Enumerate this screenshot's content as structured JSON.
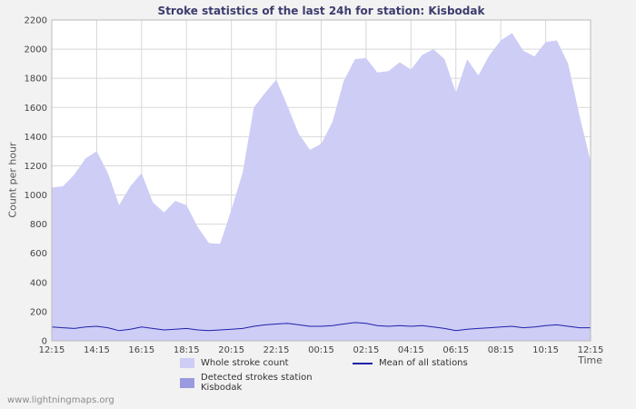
{
  "page": {
    "watermark": "www.lightningmaps.org"
  },
  "chart_data": {
    "type": "area",
    "title": "Stroke statistics of the last 24h for station: Kisbodak",
    "xlabel": "Time",
    "ylabel": "Count per hour",
    "ylim": [
      0,
      2200
    ],
    "y_ticks": [
      0,
      200,
      400,
      600,
      800,
      1000,
      1200,
      1400,
      1600,
      1800,
      2000,
      2200
    ],
    "x_ticks": [
      0,
      2,
      4,
      6,
      8,
      10,
      12,
      14,
      16,
      18,
      20,
      22,
      24
    ],
    "x_tick_labels": [
      "12:15",
      "14:15",
      "16:15",
      "18:15",
      "20:15",
      "22:15",
      "00:15",
      "02:15",
      "04:15",
      "06:15",
      "08:15",
      "10:15",
      "12:15"
    ],
    "x_hours": [
      0,
      0.5,
      1,
      1.5,
      2,
      2.5,
      3,
      3.5,
      4,
      4.5,
      5,
      5.5,
      6,
      6.5,
      7,
      7.5,
      8,
      8.5,
      9,
      9.5,
      10,
      10.5,
      11,
      11.5,
      12,
      12.5,
      13,
      13.5,
      14,
      14.5,
      15,
      15.5,
      16,
      16.5,
      17,
      17.5,
      18,
      18.5,
      19,
      19.5,
      20,
      20.5,
      21,
      21.5,
      22,
      22.5,
      23,
      23.5,
      24
    ],
    "grid": true,
    "legend_position": "bottom",
    "colors": {
      "plot_bg": "#ffffff",
      "grid": "#d8d8d8",
      "border": "#bbbbbb",
      "whole_area": "#cdcdf6",
      "detected_area": "#9a9ae0",
      "mean_line": "#2121aa"
    },
    "series": [
      {
        "id": "whole",
        "name": "Whole stroke count",
        "type": "area",
        "color": "#cdcdf6",
        "values": [
          1050,
          1060,
          1140,
          1250,
          1300,
          1150,
          930,
          1060,
          1150,
          950,
          880,
          960,
          930,
          780,
          670,
          665,
          900,
          1150,
          1600,
          1700,
          1790,
          1610,
          1420,
          1310,
          1350,
          1500,
          1780,
          1930,
          1940,
          1840,
          1850,
          1910,
          1860,
          1960,
          2000,
          1930,
          1700,
          1930,
          1820,
          1960,
          2060,
          2110,
          1990,
          1950,
          2050,
          2060,
          1900,
          1550,
          1230
        ]
      },
      {
        "id": "detected",
        "name": "Detected strokes station Kisbodak",
        "type": "area",
        "color": "#9a9ae0",
        "values": [
          0,
          0,
          0,
          0,
          0,
          0,
          0,
          0,
          0,
          0,
          0,
          0,
          0,
          0,
          0,
          0,
          0,
          0,
          0,
          0,
          0,
          0,
          0,
          0,
          0,
          0,
          0,
          0,
          0,
          0,
          0,
          0,
          0,
          0,
          0,
          0,
          0,
          0,
          0,
          0,
          0,
          0,
          0,
          0,
          0,
          0,
          0,
          0,
          0
        ]
      },
      {
        "id": "mean",
        "name": "Mean of all stations",
        "type": "line",
        "color": "#2121aa",
        "values": [
          95,
          90,
          85,
          95,
          100,
          90,
          70,
          80,
          95,
          85,
          75,
          80,
          85,
          75,
          70,
          75,
          80,
          85,
          100,
          110,
          115,
          120,
          110,
          100,
          100,
          105,
          115,
          125,
          120,
          105,
          100,
          105,
          100,
          105,
          95,
          85,
          70,
          80,
          85,
          90,
          95,
          100,
          90,
          95,
          105,
          110,
          100,
          90,
          90
        ]
      }
    ],
    "legend": {
      "items": [
        {
          "label": "Whole stroke count",
          "swatch": "area",
          "color": "#cdcdf6"
        },
        {
          "label": "Mean of all stations",
          "swatch": "line",
          "color": "#2121aa"
        },
        {
          "label": "Detected strokes station Kisbodak",
          "swatch": "area",
          "color": "#9a9ae0"
        }
      ]
    }
  }
}
